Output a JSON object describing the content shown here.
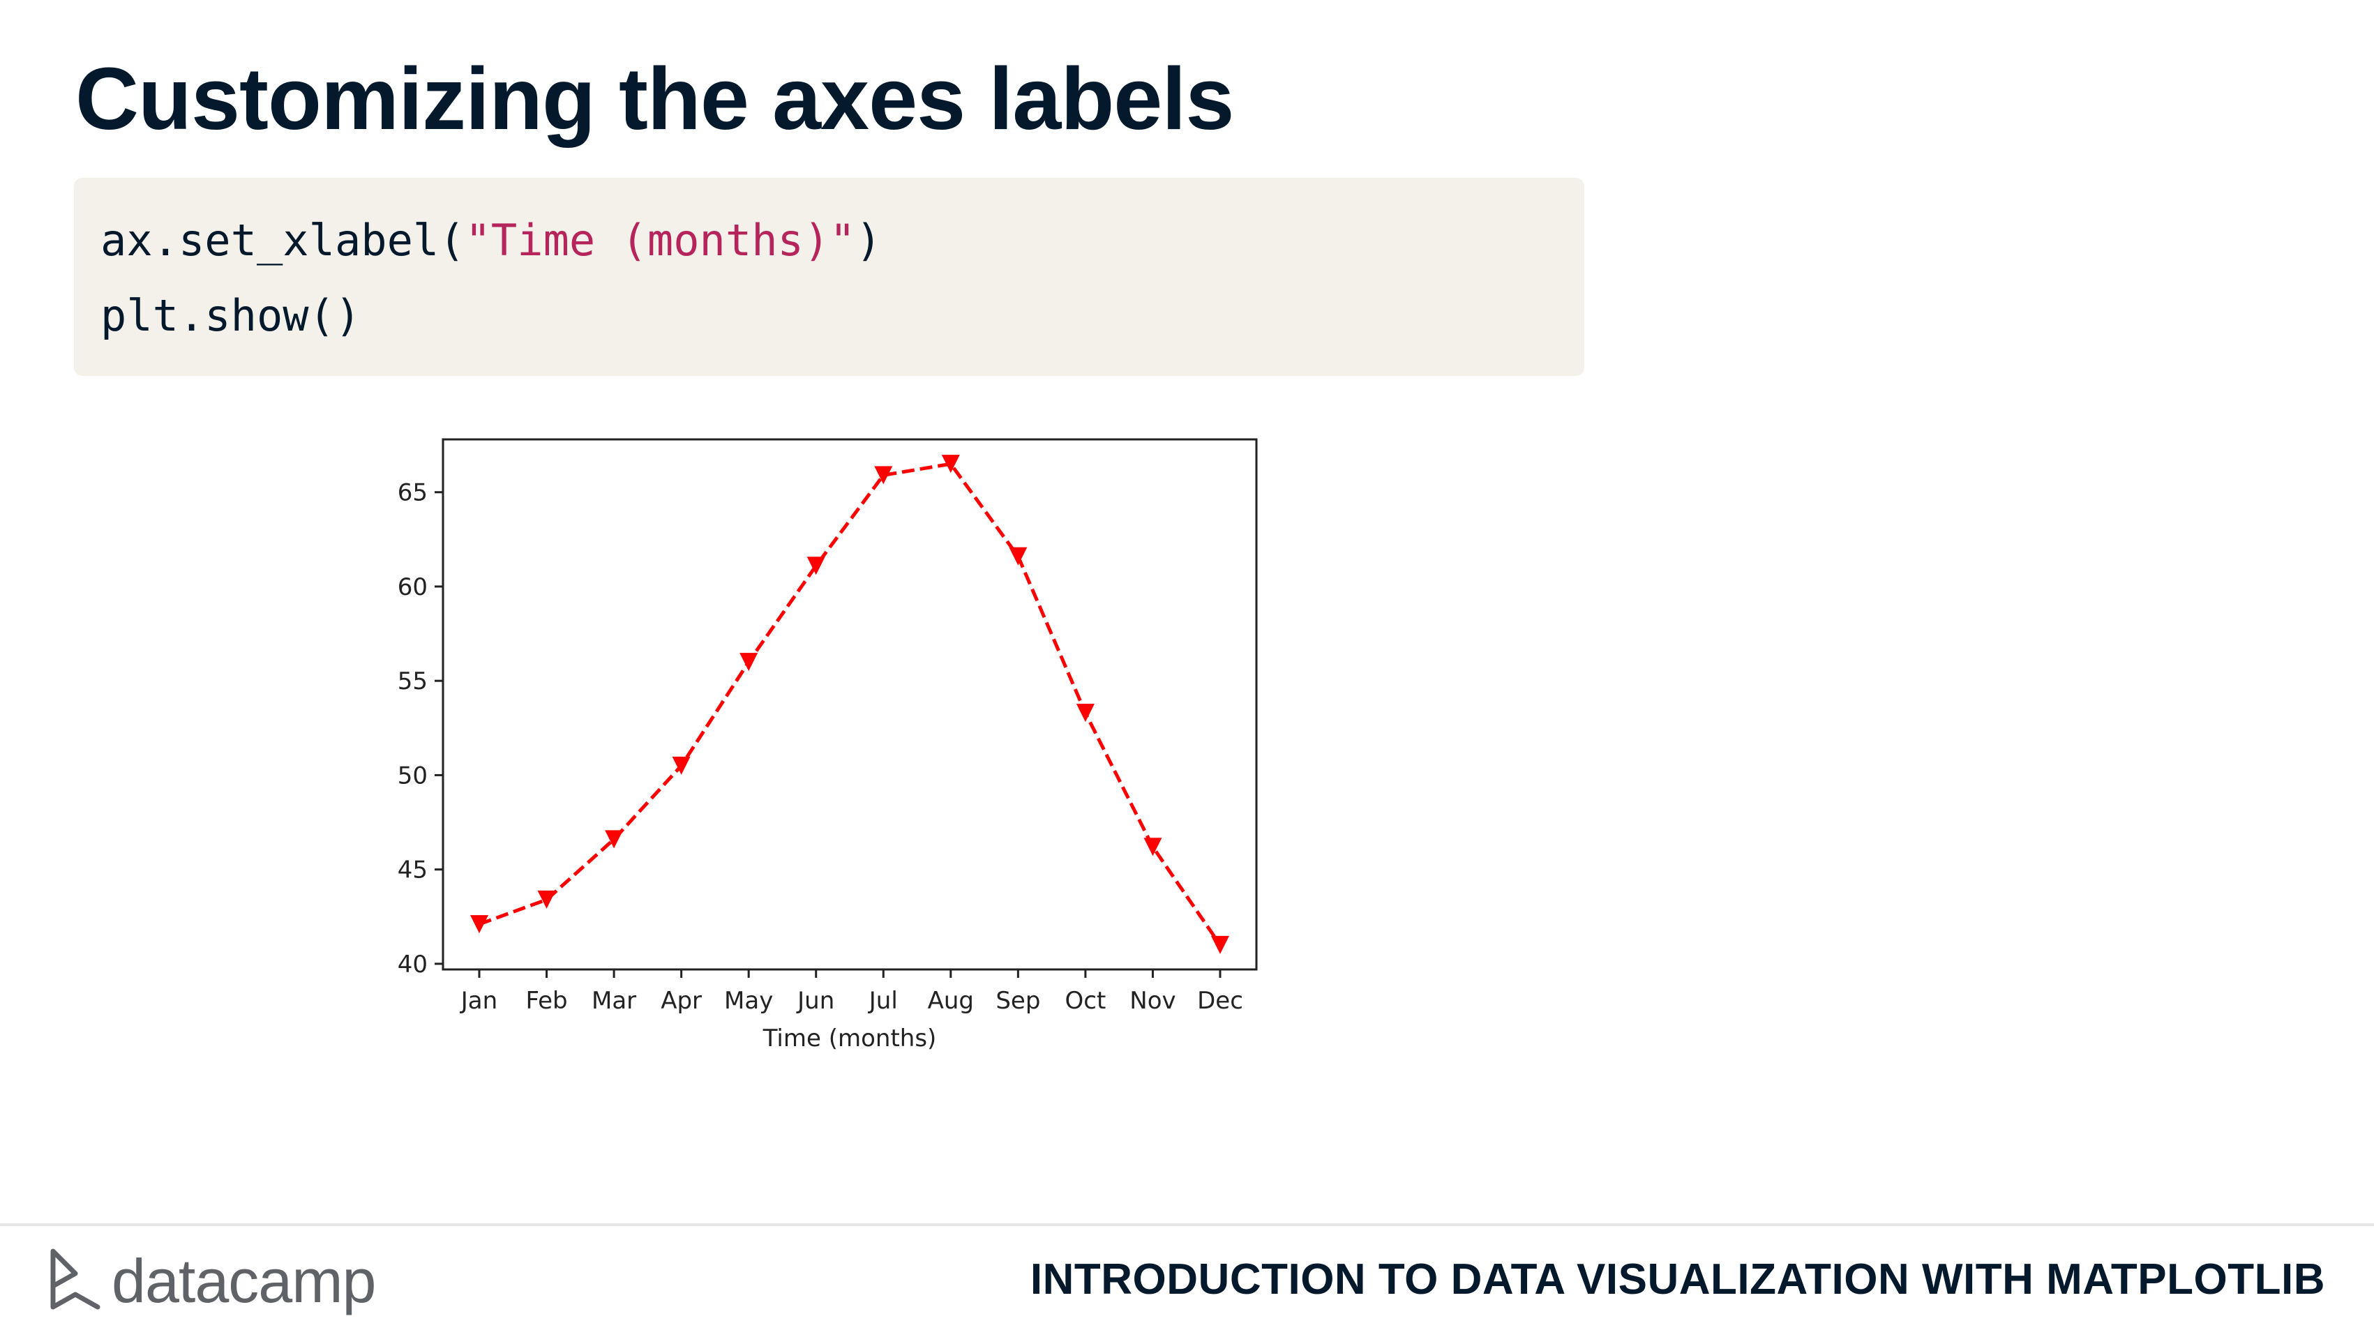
{
  "slide": {
    "title": "Customizing the axes labels"
  },
  "code": {
    "line1_pre": "ax.set_xlabel(",
    "line1_str": "\"Time (months)\"",
    "line1_post": ")",
    "line2": "plt.show()"
  },
  "chart_data": {
    "type": "line",
    "categories": [
      "Jan",
      "Feb",
      "Mar",
      "Apr",
      "May",
      "Jun",
      "Jul",
      "Aug",
      "Sep",
      "Oct",
      "Nov",
      "Dec"
    ],
    "series": [
      {
        "values": [
          42.1,
          43.4,
          46.6,
          50.5,
          56.0,
          61.1,
          65.9,
          66.5,
          61.6,
          53.3,
          46.2,
          41.0
        ],
        "color": "#ff0000",
        "linestyle": "dashed",
        "marker": "triangle-down"
      }
    ],
    "xlabel": "Time (months)",
    "ylabel": "",
    "yticks": [
      40,
      45,
      50,
      55,
      60,
      65
    ],
    "ylim": [
      39.7,
      67.8
    ],
    "grid": false
  },
  "footer": {
    "logo_text": "datacamp",
    "course_title": "INTRODUCTION TO DATA VISUALIZATION WITH MATPLOTLIB"
  },
  "colors": {
    "title": "#05192d",
    "code_bg": "#f4f1eb",
    "code_string": "#b5255c",
    "logo": "#5f6368"
  }
}
